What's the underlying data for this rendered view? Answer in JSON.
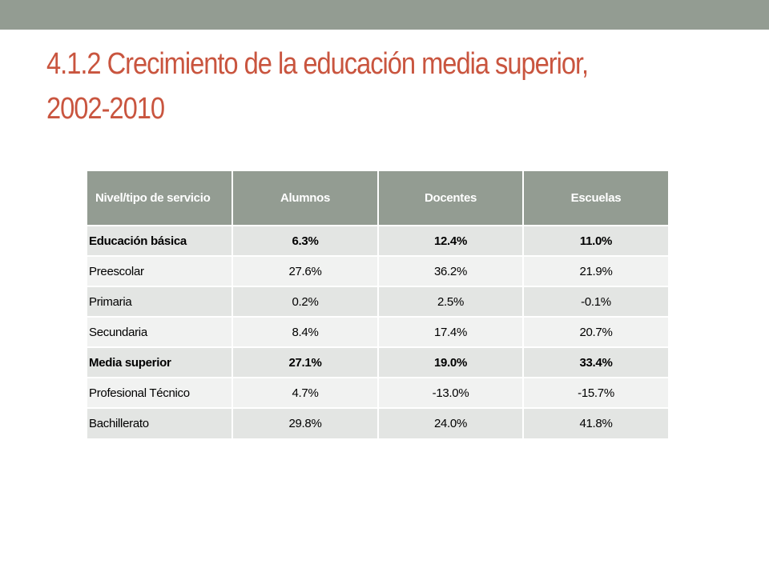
{
  "slide": {
    "title": "4.1.2 Crecimiento de la educación media superior, 2002-2010"
  },
  "table": {
    "headers": [
      "Nivel/tipo de servicio",
      "Alumnos",
      "Docentes",
      "Escuelas"
    ],
    "rows": [
      {
        "label": "Educación básica",
        "alumnos": "6.3%",
        "docentes": "12.4%",
        "escuelas": "11.0%",
        "bold": true
      },
      {
        "label": "Preescolar",
        "alumnos": "27.6%",
        "docentes": "36.2%",
        "escuelas": "21.9%",
        "bold": false
      },
      {
        "label": "Primaria",
        "alumnos": "0.2%",
        "docentes": "2.5%",
        "escuelas": "-0.1%",
        "bold": false
      },
      {
        "label": "Secundaria",
        "alumnos": "8.4%",
        "docentes": "17.4%",
        "escuelas": "20.7%",
        "bold": false
      },
      {
        "label": "Media superior",
        "alumnos": "27.1%",
        "docentes": "19.0%",
        "escuelas": "33.4%",
        "bold": true
      },
      {
        "label": "Profesional Técnico",
        "alumnos": "4.7%",
        "docentes": "-13.0%",
        "escuelas": "-15.7%",
        "bold": false
      },
      {
        "label": "Bachillerato",
        "alumnos": "29.8%",
        "docentes": "24.0%",
        "escuelas": "41.8%",
        "bold": false
      }
    ]
  },
  "colors": {
    "accent_bar": "#939c92",
    "title": "#c9553f",
    "row_odd": "#e3e5e3",
    "row_even": "#f1f2f1"
  }
}
